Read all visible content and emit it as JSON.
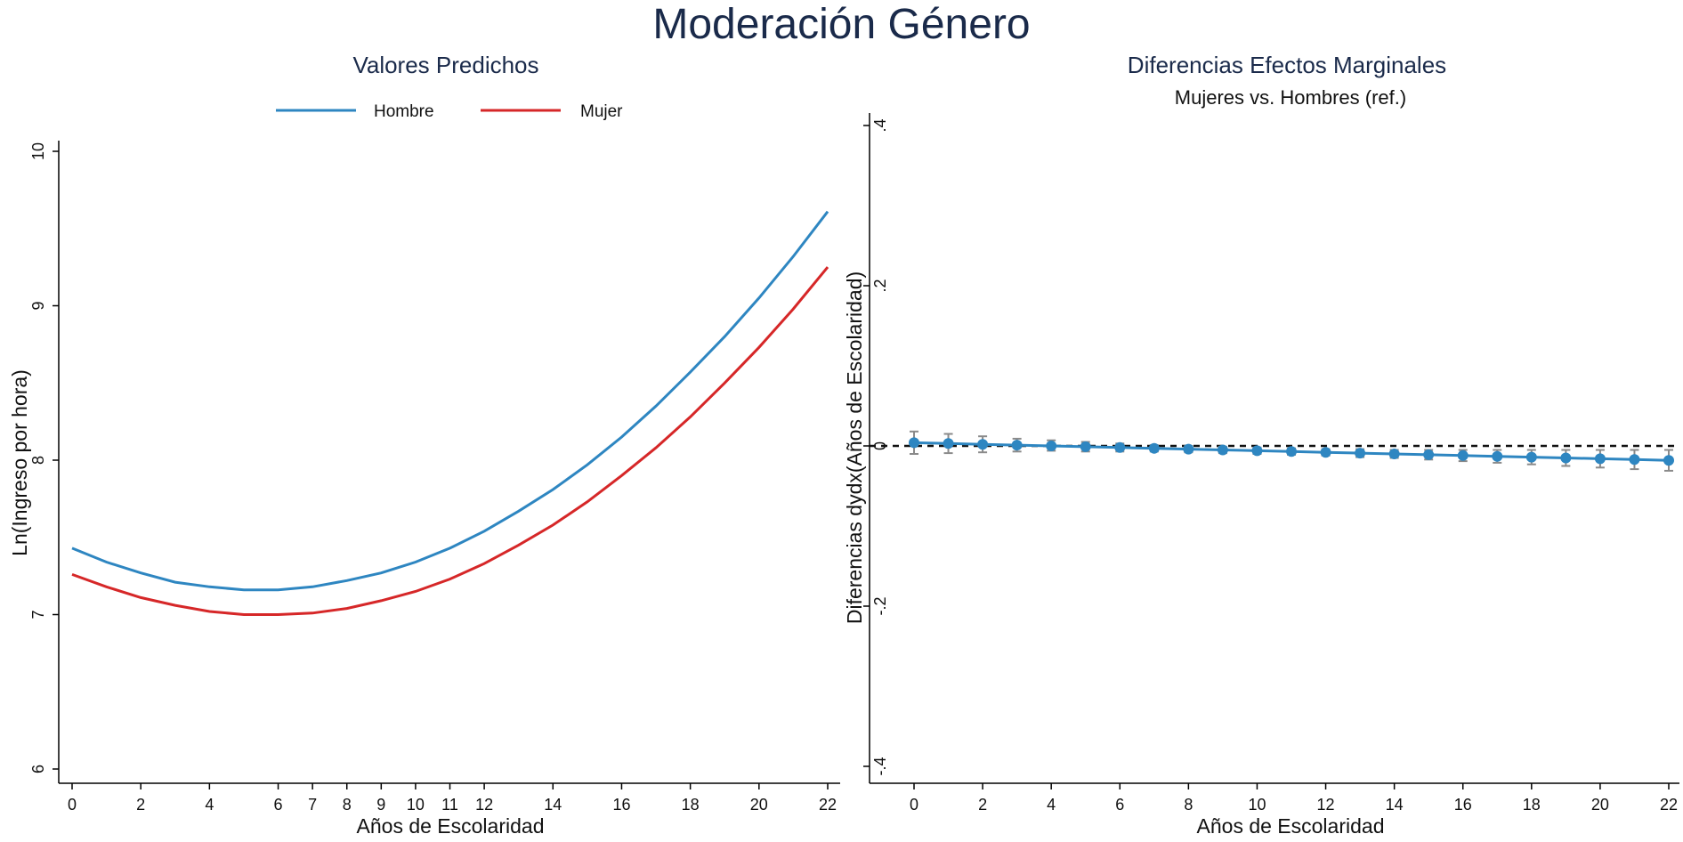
{
  "title": "Moderación Género",
  "chart_data": [
    {
      "type": "line",
      "title": "Valores Predichos",
      "xlabel": "Años de Escolaridad",
      "ylabel": "Ln(Ingreso por hora)",
      "xlim": [
        0,
        22
      ],
      "ylim": [
        6,
        10
      ],
      "xticks": [
        0,
        2,
        4,
        6,
        7,
        8,
        9,
        10,
        11,
        12,
        14,
        16,
        18,
        20,
        22
      ],
      "yticks": [
        6,
        7,
        8,
        9,
        10
      ],
      "grid": false,
      "legend": "top",
      "x": [
        0,
        1,
        2,
        3,
        4,
        5,
        6,
        7,
        8,
        9,
        10,
        11,
        12,
        13,
        14,
        15,
        16,
        17,
        18,
        19,
        20,
        21,
        22
      ],
      "series": [
        {
          "name": "Hombre",
          "color": "#2e86c1",
          "values": [
            7.43,
            7.34,
            7.27,
            7.21,
            7.18,
            7.16,
            7.16,
            7.18,
            7.22,
            7.27,
            7.34,
            7.43,
            7.54,
            7.67,
            7.81,
            7.97,
            8.15,
            8.35,
            8.57,
            8.8,
            9.05,
            9.32,
            9.61
          ]
        },
        {
          "name": "Mujer",
          "color": "#d62728",
          "values": [
            7.26,
            7.18,
            7.11,
            7.06,
            7.02,
            7.0,
            7.0,
            7.01,
            7.04,
            7.09,
            7.15,
            7.23,
            7.33,
            7.45,
            7.58,
            7.73,
            7.9,
            8.08,
            8.28,
            8.5,
            8.73,
            8.98,
            9.25
          ]
        }
      ]
    },
    {
      "type": "scatter",
      "title": "Diferencias Efectos Marginales",
      "subtitle": "Mujeres vs. Hombres (ref.)",
      "xlabel": "Años de Escolaridad",
      "ylabel": "Diferencias dydx(Años de Escolaridad)",
      "xlim": [
        0,
        22
      ],
      "ylim": [
        -0.4,
        0.4
      ],
      "xticks": [
        0,
        2,
        4,
        6,
        8,
        10,
        12,
        14,
        16,
        18,
        20,
        22
      ],
      "yticks": [
        -0.4,
        -0.2,
        0,
        0.2,
        0.4
      ],
      "ytick_labels": [
        "-.4",
        "-.2",
        "0",
        ".2",
        ".4"
      ],
      "grid": false,
      "reference_line": 0,
      "point_color": "#2e86c1",
      "ci_color": "#8a8a8a",
      "x": [
        0,
        1,
        2,
        3,
        4,
        5,
        6,
        7,
        8,
        9,
        10,
        11,
        12,
        13,
        14,
        15,
        16,
        17,
        18,
        19,
        20,
        21,
        22
      ],
      "values": [
        0.004,
        0.003,
        0.002,
        0.001,
        0.0,
        -0.001,
        -0.002,
        -0.003,
        -0.004,
        -0.005,
        -0.006,
        -0.007,
        -0.008,
        -0.009,
        -0.01,
        -0.011,
        -0.012,
        -0.013,
        -0.014,
        -0.015,
        -0.016,
        -0.017,
        -0.018
      ],
      "ci_lower": [
        -0.01,
        -0.009,
        -0.008,
        -0.007,
        -0.006,
        -0.007,
        -0.007,
        -0.007,
        -0.008,
        -0.009,
        -0.01,
        -0.011,
        -0.012,
        -0.014,
        -0.015,
        -0.017,
        -0.019,
        -0.021,
        -0.023,
        -0.025,
        -0.027,
        -0.029,
        -0.031
      ],
      "ci_upper": [
        0.018,
        0.015,
        0.012,
        0.009,
        0.007,
        0.005,
        0.003,
        0.001,
        0.0,
        -0.001,
        -0.002,
        -0.003,
        -0.004,
        -0.004,
        -0.005,
        -0.005,
        -0.005,
        -0.005,
        -0.005,
        -0.005,
        -0.005,
        -0.005,
        -0.005
      ]
    }
  ]
}
